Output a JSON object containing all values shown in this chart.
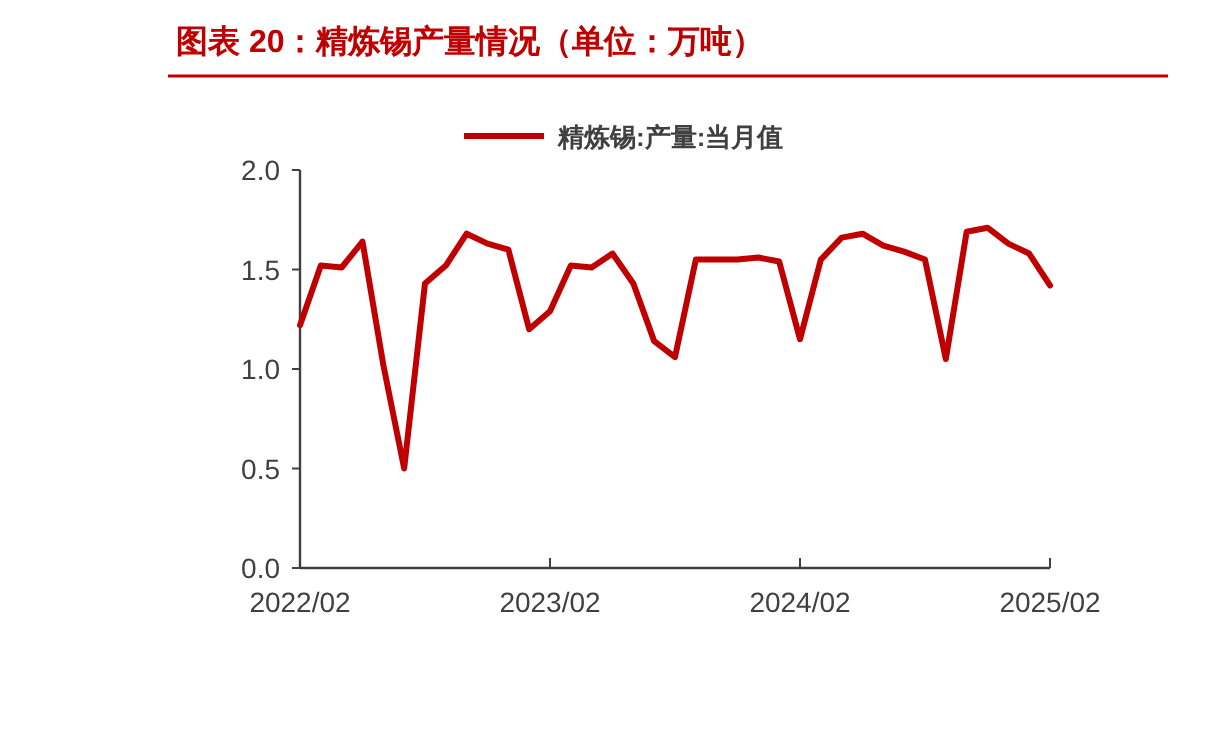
{
  "chart_data": {
    "type": "line",
    "title": "图表 20：精炼锡产量情况（单位：万吨）",
    "x": [
      "2022-02",
      "2022-03",
      "2022-04",
      "2022-05",
      "2022-06",
      "2022-07",
      "2022-08",
      "2022-09",
      "2022-10",
      "2022-11",
      "2022-12",
      "2023-01",
      "2023-02",
      "2023-03",
      "2023-04",
      "2023-05",
      "2023-06",
      "2023-07",
      "2023-08",
      "2023-09",
      "2023-10",
      "2023-11",
      "2023-12",
      "2024-01",
      "2024-02",
      "2024-03",
      "2024-04",
      "2024-05",
      "2024-06",
      "2024-07",
      "2024-08",
      "2024-09",
      "2024-10",
      "2024-11",
      "2024-12",
      "2025-01",
      "2025-02"
    ],
    "series": [
      {
        "name": "精炼锡:产量:当月值",
        "color": "#c00000",
        "values": [
          1.22,
          1.52,
          1.51,
          1.64,
          1.02,
          0.5,
          1.43,
          1.52,
          1.68,
          1.63,
          1.6,
          1.2,
          1.29,
          1.52,
          1.51,
          1.58,
          1.43,
          1.14,
          1.06,
          1.55,
          1.55,
          1.55,
          1.56,
          1.54,
          1.15,
          1.55,
          1.66,
          1.68,
          1.62,
          1.59,
          1.55,
          1.05,
          1.69,
          1.71,
          1.63,
          1.58,
          1.42
        ]
      }
    ],
    "xlim": [
      "2022-02",
      "2025-02"
    ],
    "xticks": [
      {
        "value": "2022-02",
        "label": "2022/02"
      },
      {
        "value": "2023-02",
        "label": "2023/02"
      },
      {
        "value": "2024-02",
        "label": "2024/02"
      },
      {
        "value": "2025-02",
        "label": "2025/02"
      }
    ],
    "ylim": [
      0,
      2.0
    ],
    "yticks": [
      {
        "value": 0,
        "label": "0.0"
      },
      {
        "value": 0.5,
        "label": "0.5"
      },
      {
        "value": 1.0,
        "label": "1.0"
      },
      {
        "value": 1.5,
        "label": "1.5"
      },
      {
        "value": 2.0,
        "label": "2.0"
      }
    ],
    "legend": "top",
    "line_style": "solid"
  }
}
